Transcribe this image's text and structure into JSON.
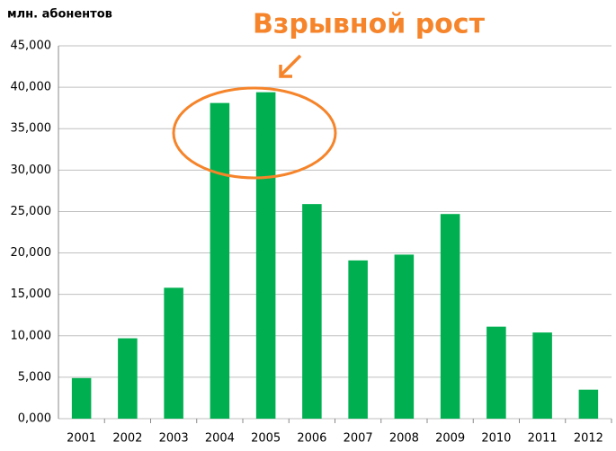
{
  "chart_data": {
    "type": "bar",
    "annotation": "Взрывной рост",
    "y_label": "млн. абонентов",
    "categories": [
      "2001",
      "2002",
      "2003",
      "2004",
      "2005",
      "2006",
      "2007",
      "2008",
      "2009",
      "2010",
      "2011",
      "2012"
    ],
    "values": [
      4.9,
      9.7,
      15.8,
      38.1,
      39.4,
      25.9,
      19.1,
      19.8,
      24.7,
      11.1,
      10.4,
      3.5
    ],
    "color": "#00b050",
    "ylim": [
      0,
      45
    ],
    "yticks": [
      {
        "value": 0,
        "label": "0,000"
      },
      {
        "value": 5,
        "label": "5,000"
      },
      {
        "value": 10,
        "label": "10,000"
      },
      {
        "value": 15,
        "label": "15,000"
      },
      {
        "value": 20,
        "label": "20,000"
      },
      {
        "value": 25,
        "label": "25,000"
      },
      {
        "value": 30,
        "label": "30,000"
      },
      {
        "value": 35,
        "label": "35,000"
      },
      {
        "value": 40,
        "label": "40,000"
      },
      {
        "value": 45,
        "label": "45,000"
      }
    ],
    "grid": true
  }
}
